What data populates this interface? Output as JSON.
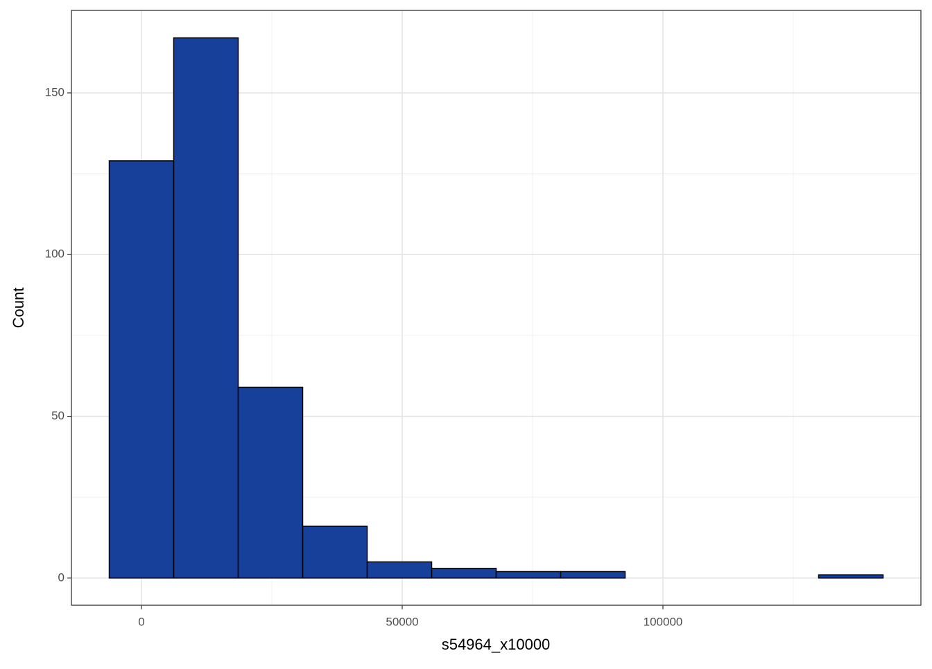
{
  "chart_data": {
    "type": "histogram",
    "x_label": "s54964_x10000",
    "y_label": "Count",
    "bins": [
      -6184,
      6183,
      18550,
      30917,
      43284,
      55651,
      68018,
      80385,
      92752,
      105119,
      117486,
      129853,
      142220
    ],
    "values": [
      129,
      167,
      59,
      16,
      5,
      3,
      2,
      2,
      0,
      0,
      0,
      1
    ],
    "color": "#17409a",
    "edge_color": "#000000",
    "xlim": [
      -13431,
      149468
    ],
    "ylim": [
      -8.4,
      175.5
    ],
    "xticks": [
      0,
      50000,
      100000
    ],
    "yticks": [
      0,
      50,
      100,
      150
    ],
    "x_minor_grid": [
      25000,
      75000,
      125000
    ],
    "y_minor_grid": [
      25,
      75,
      125
    ],
    "grid": true
  }
}
